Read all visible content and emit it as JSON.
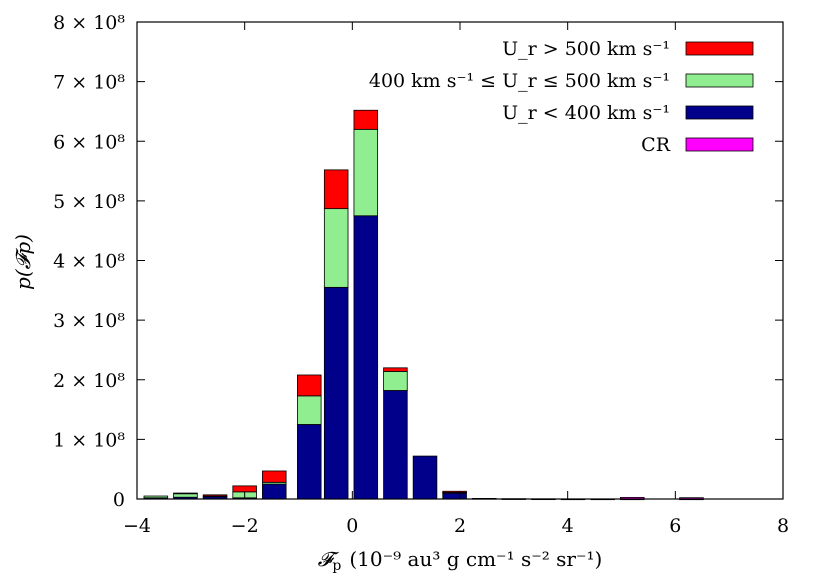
{
  "chart_data": {
    "type": "bar",
    "stacked": true,
    "xlabel_prefix": "𝓕",
    "xlabel_sub": "p",
    "xlabel_units": "(10⁻⁹ au³ g cm⁻¹ s⁻² sr⁻¹)",
    "ylabel": "p(𝓕p)",
    "xlim": [
      -4,
      8
    ],
    "ylim": [
      0,
      800000000
    ],
    "x_ticks": [
      -4,
      -2,
      0,
      2,
      4,
      6,
      8
    ],
    "x_tick_labels": [
      "−4",
      "−2",
      "0",
      "2",
      "4",
      "6",
      "8"
    ],
    "y_ticks": [
      0,
      100000000,
      200000000,
      300000000,
      400000000,
      500000000,
      600000000,
      700000000,
      800000000
    ],
    "y_tick_labels": [
      "0",
      "1 × 10⁸",
      "2 × 10⁸",
      "3 × 10⁸",
      "4 × 10⁸",
      "5 × 10⁸",
      "6 × 10⁸",
      "7 × 10⁸",
      "8 × 10⁸"
    ],
    "bin_centers": [
      -3.65,
      -3.1,
      -2.55,
      -2.0,
      -1.45,
      -0.8,
      -0.3,
      0.25,
      0.8,
      1.35,
      1.9,
      2.45,
      3.0,
      3.55,
      4.1,
      4.65,
      5.2,
      6.3
    ],
    "bin_width": 0.44,
    "series": [
      {
        "name": "U_r < 400 km s⁻¹",
        "color": "#00008b",
        "values": [
          2000000,
          3000000,
          4000000,
          2000000,
          25000000,
          125000000,
          355000000,
          475000000,
          182000000,
          72000000,
          10000000,
          1000000,
          500000,
          300000,
          200000,
          200000,
          200000,
          200000
        ]
      },
      {
        "name": "400 km s⁻¹ ≤ U_r ≤ 500 km s⁻¹",
        "color": "#90ee90",
        "values": [
          3000000,
          6000000,
          1000000,
          10000000,
          3000000,
          48000000,
          132000000,
          145000000,
          32000000,
          0,
          1000000,
          0,
          0,
          0,
          0,
          0,
          0,
          0
        ]
      },
      {
        "name": "U_r > 500 km s⁻¹",
        "color": "#ff0000",
        "values": [
          0,
          1000000,
          2000000,
          10000000,
          19000000,
          35000000,
          65000000,
          32000000,
          6000000,
          0,
          2000000,
          0,
          0,
          0,
          0,
          0,
          0,
          0
        ]
      },
      {
        "name": "CR",
        "color": "#ff00ff",
        "values": [
          0,
          0,
          0,
          0,
          0,
          0,
          0,
          0,
          0,
          0,
          0,
          0,
          0,
          0,
          0,
          0,
          2500000,
          2000000
        ]
      }
    ],
    "legend": {
      "placement": "top-right",
      "entries": [
        {
          "label": "U_r > 500 km s⁻¹",
          "color": "#ff0000"
        },
        {
          "label": "400 km s⁻¹ ≤ U_r ≤ 500 km s⁻¹",
          "color": "#90ee90"
        },
        {
          "label": "U_r < 400 km s⁻¹",
          "color": "#00008b"
        },
        {
          "label": "CR",
          "color": "#ff00ff"
        }
      ]
    },
    "grid": false
  }
}
